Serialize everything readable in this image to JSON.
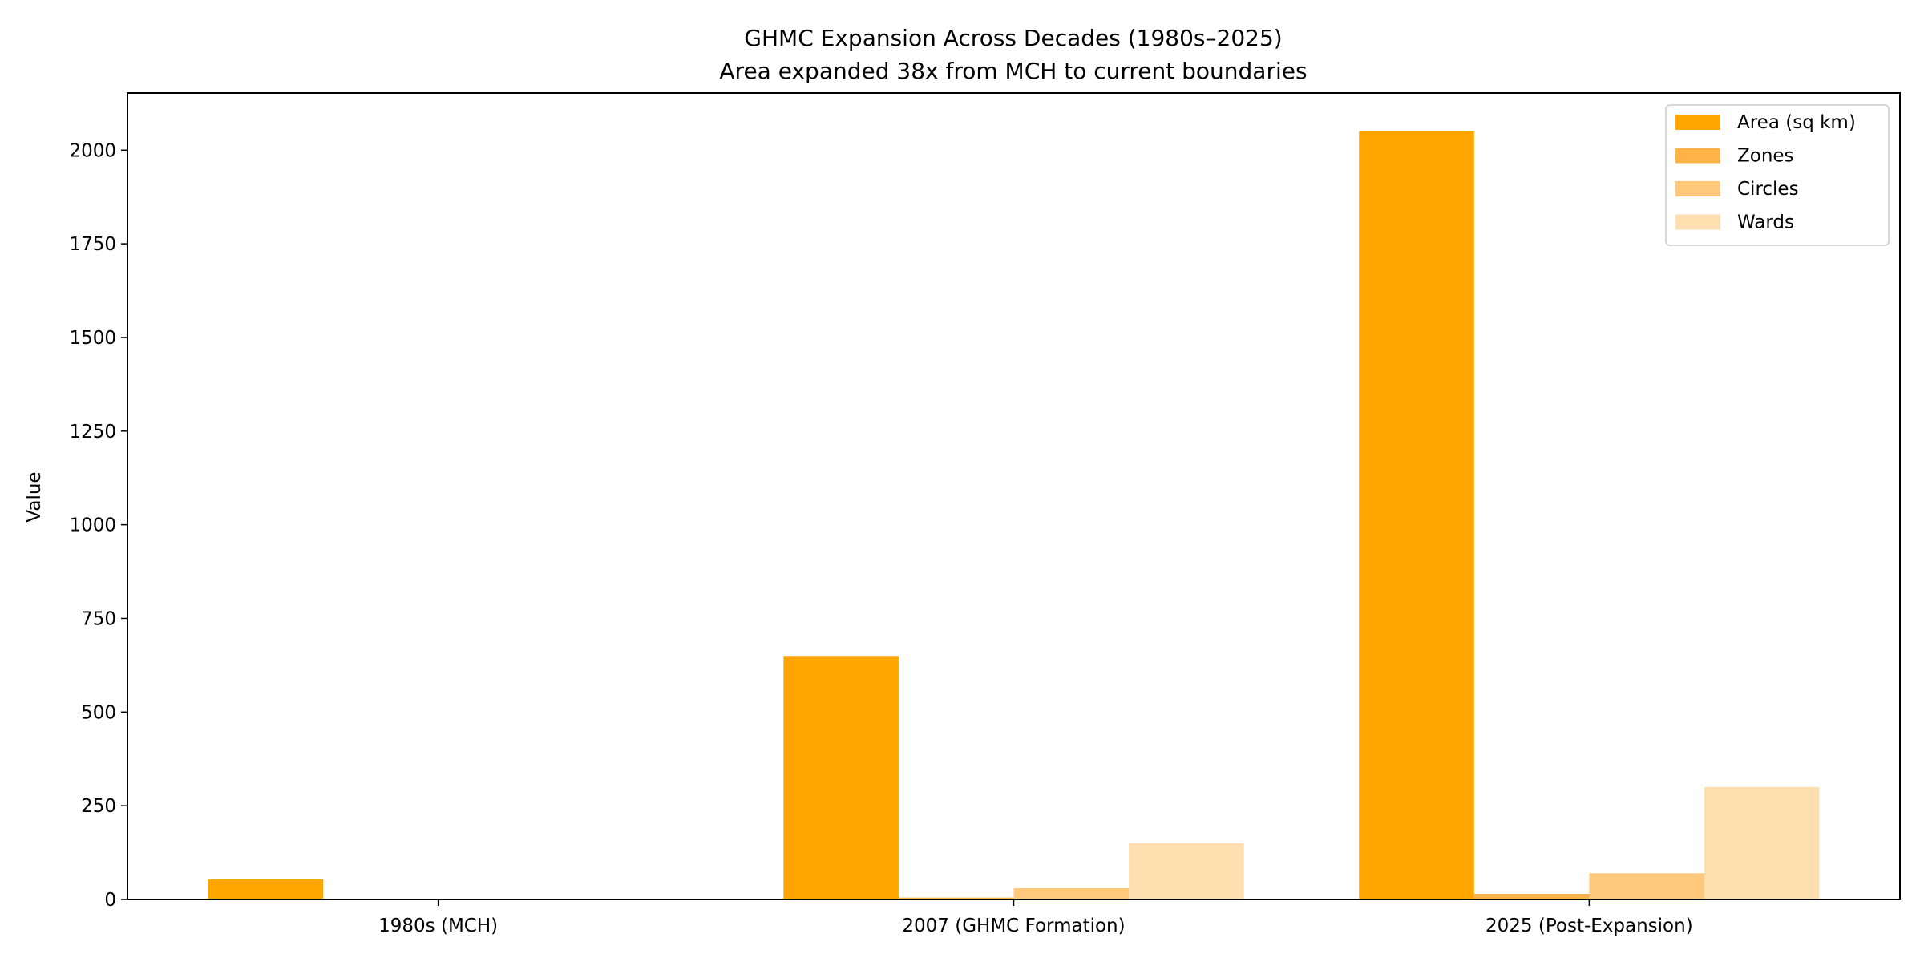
{
  "chart_data": {
    "type": "bar",
    "title": "GHMC Expansion Across Decades (1980s–2025)",
    "subtitle": "Area expanded 38x from MCH to current boundaries",
    "xlabel": "",
    "ylabel": "Value",
    "categories": [
      "1980s (MCH)",
      "2007 (GHMC Formation)",
      "2025 (Post-Expansion)"
    ],
    "series": [
      {
        "name": "Area (sq km)",
        "color": "#FFA500",
        "values": [
          54,
          650,
          2050
        ]
      },
      {
        "name": "Zones",
        "color": "#FFB347",
        "values": [
          0,
          5,
          15
        ]
      },
      {
        "name": "Circles",
        "color": "#FFC87A",
        "values": [
          0,
          30,
          70
        ]
      },
      {
        "name": "Wards",
        "color": "#FFDFB0",
        "values": [
          0,
          150,
          300
        ]
      }
    ],
    "ylim": [
      0,
      2152.5
    ],
    "yticks": [
      0,
      250,
      500,
      750,
      1000,
      1250,
      1500,
      1750,
      2000
    ],
    "grid": false,
    "legend_position": "top-right"
  }
}
